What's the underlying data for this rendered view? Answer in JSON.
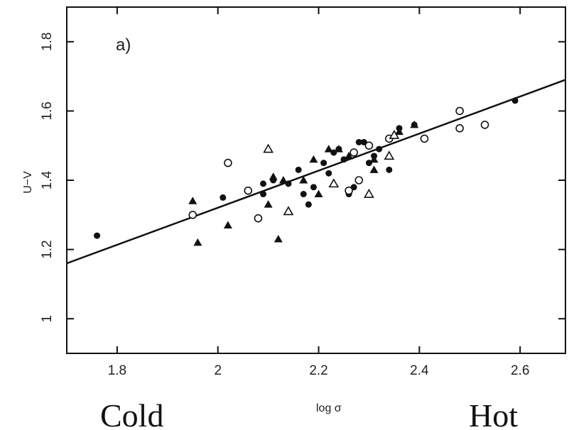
{
  "chart_data": {
    "type": "scatter",
    "title": "",
    "panel_label": "a)",
    "xlabel": "log σ",
    "ylabel": "U−V",
    "xlim": [
      1.7,
      2.69
    ],
    "ylim": [
      0.9,
      1.9
    ],
    "xticks": [
      1.8,
      2,
      2.2,
      2.4,
      2.6
    ],
    "xtick_labels": [
      "1.8",
      "2",
      "2.2",
      "2.4",
      "2.6"
    ],
    "yticks": [
      1,
      1.2,
      1.4,
      1.6,
      1.8
    ],
    "ytick_labels": [
      "1",
      "1.2",
      "1.4",
      "1.6",
      "1.8"
    ],
    "grid": false,
    "caption_left": "Cold",
    "caption_right": "Hot",
    "fit_line": {
      "x": [
        1.7,
        2.69
      ],
      "y": [
        1.16,
        1.69
      ]
    },
    "series": [
      {
        "marker": "filled-circle",
        "points": [
          [
            1.76,
            1.24
          ],
          [
            2.01,
            1.35
          ],
          [
            2.09,
            1.39
          ],
          [
            2.09,
            1.36
          ],
          [
            2.11,
            1.4
          ],
          [
            2.14,
            1.39
          ],
          [
            2.16,
            1.43
          ],
          [
            2.17,
            1.36
          ],
          [
            2.18,
            1.33
          ],
          [
            2.19,
            1.38
          ],
          [
            2.21,
            1.45
          ],
          [
            2.22,
            1.42
          ],
          [
            2.23,
            1.48
          ],
          [
            2.24,
            1.49
          ],
          [
            2.25,
            1.46
          ],
          [
            2.26,
            1.36
          ],
          [
            2.27,
            1.38
          ],
          [
            2.28,
            1.51
          ],
          [
            2.29,
            1.51
          ],
          [
            2.3,
            1.45
          ],
          [
            2.31,
            1.47
          ],
          [
            2.32,
            1.49
          ],
          [
            2.34,
            1.43
          ],
          [
            2.36,
            1.55
          ],
          [
            2.39,
            1.56
          ],
          [
            2.59,
            1.63
          ]
        ]
      },
      {
        "marker": "open-circle",
        "points": [
          [
            1.95,
            1.3
          ],
          [
            2.02,
            1.45
          ],
          [
            2.06,
            1.37
          ],
          [
            2.08,
            1.29
          ],
          [
            2.26,
            1.37
          ],
          [
            2.27,
            1.48
          ],
          [
            2.28,
            1.4
          ],
          [
            2.3,
            1.5
          ],
          [
            2.34,
            1.52
          ],
          [
            2.41,
            1.52
          ],
          [
            2.48,
            1.6
          ],
          [
            2.48,
            1.55
          ],
          [
            2.53,
            1.56
          ]
        ]
      },
      {
        "marker": "filled-triangle",
        "points": [
          [
            1.95,
            1.34
          ],
          [
            1.96,
            1.22
          ],
          [
            2.02,
            1.27
          ],
          [
            2.1,
            1.33
          ],
          [
            2.11,
            1.41
          ],
          [
            2.12,
            1.23
          ],
          [
            2.13,
            1.4
          ],
          [
            2.17,
            1.4
          ],
          [
            2.19,
            1.46
          ],
          [
            2.2,
            1.36
          ],
          [
            2.22,
            1.49
          ],
          [
            2.24,
            1.49
          ],
          [
            2.26,
            1.47
          ],
          [
            2.31,
            1.43
          ],
          [
            2.31,
            1.46
          ],
          [
            2.36,
            1.54
          ],
          [
            2.39,
            1.56
          ]
        ]
      },
      {
        "marker": "open-triangle",
        "points": [
          [
            2.1,
            1.49
          ],
          [
            2.14,
            1.31
          ],
          [
            2.23,
            1.39
          ],
          [
            2.3,
            1.36
          ],
          [
            2.34,
            1.47
          ],
          [
            2.35,
            1.53
          ]
        ]
      }
    ]
  }
}
